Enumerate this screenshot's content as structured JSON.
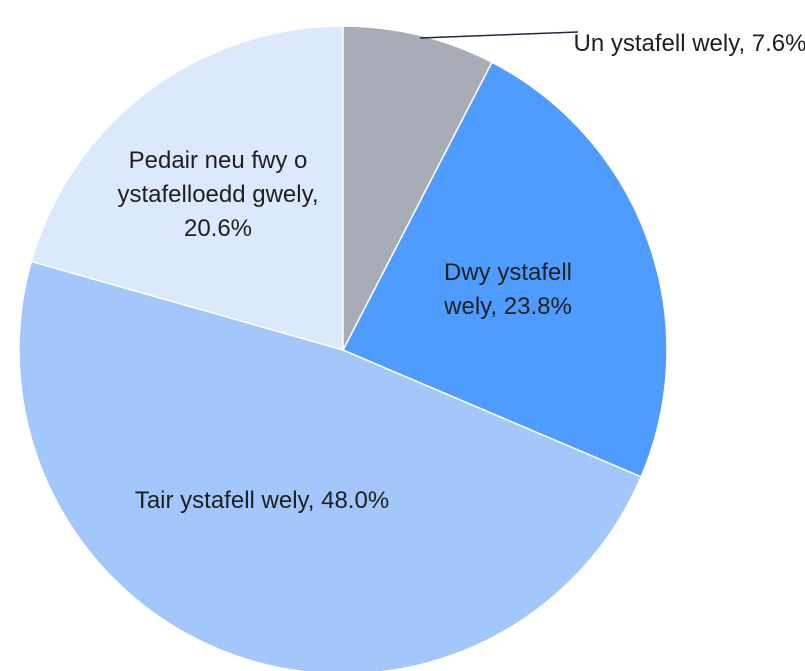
{
  "chart_data": {
    "type": "pie",
    "categories": [
      "Un ystafell wely,",
      "Dwy ystafell wely,",
      "Tair ystafell wely,",
      "Pedair neu fwy o ystafelloedd gwely,"
    ],
    "values": [
      7.6,
      23.8,
      48.0,
      20.6
    ],
    "value_labels": [
      "7.6%",
      "23.8%",
      "48.0%",
      "20.6%"
    ],
    "colors": [
      "#a7acb6",
      "#4f9cff",
      "#a3c6fb",
      "#dbe9fd"
    ]
  }
}
